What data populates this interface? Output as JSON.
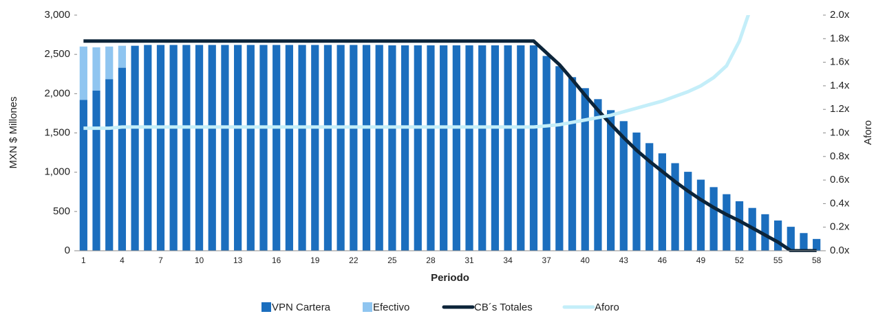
{
  "chart_data": {
    "type": "bar",
    "stacked": true,
    "x_label": "Periodo",
    "y_label": "MXN $ Millones",
    "y2_label": "Aforo",
    "categories": [
      1,
      null,
      null,
      4,
      null,
      null,
      7,
      null,
      null,
      10,
      null,
      null,
      13,
      null,
      null,
      16,
      null,
      null,
      19,
      null,
      null,
      22,
      null,
      null,
      25,
      null,
      null,
      28,
      null,
      null,
      31,
      null,
      null,
      34,
      null,
      null,
      37,
      null,
      null,
      40,
      null,
      null,
      43,
      null,
      null,
      46,
      null,
      null,
      49,
      null,
      null,
      52,
      null,
      null,
      55,
      null,
      null,
      58
    ],
    "ylim": [
      0,
      3000
    ],
    "yticks": [
      0,
      500,
      {
        "value": 1000,
        "label": "1,000"
      },
      {
        "value": 1500,
        "label": "1,500"
      },
      {
        "value": 2000,
        "label": "2,000"
      },
      {
        "value": 2500,
        "label": "2,500"
      },
      {
        "value": 3000,
        "label": "3,000"
      }
    ],
    "y2lim": [
      0,
      2
    ],
    "y2ticks": [
      {
        "value": 0,
        "label": "0.0x"
      },
      {
        "value": 0.2,
        "label": "0.2x"
      },
      {
        "value": 0.4,
        "label": "0.4x"
      },
      {
        "value": 0.6,
        "label": "0.6x"
      },
      {
        "value": 0.8,
        "label": "0.8x"
      },
      {
        "value": 1,
        "label": "1.0x"
      },
      {
        "value": 1.2,
        "label": "1.2x"
      },
      {
        "value": 1.4,
        "label": "1.4x"
      },
      {
        "value": 1.6,
        "label": "1.6x"
      },
      {
        "value": 1.8,
        "label": "1.8x"
      },
      {
        "value": 2,
        "label": "2.0x"
      }
    ],
    "legend": "bottom",
    "series": [
      {
        "name": "VPN Cartera",
        "type": "bar",
        "color": "#1b6ebe",
        "values": [
          1920,
          2040,
          2185,
          2330,
          2610,
          2620,
          2620,
          2620,
          2620,
          2620,
          2620,
          2620,
          2620,
          2620,
          2620,
          2620,
          2620,
          2620,
          2620,
          2620,
          2620,
          2620,
          2620,
          2620,
          2615,
          2615,
          2615,
          2615,
          2615,
          2615,
          2615,
          2615,
          2615,
          2615,
          2615,
          2615,
          2480,
          2350,
          2210,
          2070,
          1930,
          1790,
          1650,
          1505,
          1370,
          1240,
          1115,
          1005,
          905,
          810,
          720,
          630,
          545,
          465,
          385,
          305,
          225,
          150
        ]
      },
      {
        "name": "Efectivo",
        "type": "bar",
        "color": "#8fc5f0",
        "values": [
          680,
          550,
          415,
          280,
          0,
          0,
          0,
          0,
          0,
          0,
          0,
          0,
          0,
          0,
          0,
          0,
          0,
          0,
          0,
          0,
          0,
          0,
          0,
          0,
          0,
          0,
          0,
          0,
          0,
          0,
          0,
          0,
          0,
          0,
          0,
          0,
          0,
          0,
          0,
          0,
          0,
          0,
          0,
          0,
          0,
          0,
          0,
          0,
          0,
          0,
          0,
          0,
          0,
          0,
          0,
          0,
          0,
          0
        ]
      },
      {
        "name": "CB´s Totales",
        "type": "line",
        "color": "#0c2439",
        "width": 5,
        "values": [
          2670,
          2670,
          2670,
          2670,
          2670,
          2670,
          2670,
          2670,
          2670,
          2670,
          2670,
          2670,
          2670,
          2670,
          2670,
          2670,
          2670,
          2670,
          2670,
          2670,
          2670,
          2670,
          2670,
          2670,
          2670,
          2670,
          2670,
          2670,
          2670,
          2670,
          2670,
          2670,
          2670,
          2670,
          2670,
          2670,
          2520,
          2370,
          2180,
          1980,
          1790,
          1610,
          1440,
          1280,
          1140,
          1010,
          880,
          760,
          650,
          550,
          460,
          380,
          290,
          200,
          110,
          0,
          0,
          0
        ]
      },
      {
        "name": "Aforo",
        "type": "line",
        "axis": "y2",
        "color": "#c4eef9",
        "width": 5,
        "values": [
          1.04,
          1.04,
          1.04,
          1.05,
          1.05,
          1.05,
          1.05,
          1.05,
          1.05,
          1.05,
          1.05,
          1.05,
          1.05,
          1.05,
          1.05,
          1.05,
          1.05,
          1.05,
          1.05,
          1.05,
          1.05,
          1.05,
          1.05,
          1.05,
          1.05,
          1.05,
          1.05,
          1.05,
          1.05,
          1.05,
          1.05,
          1.05,
          1.05,
          1.05,
          1.05,
          1.05,
          1.06,
          1.07,
          1.09,
          1.11,
          1.13,
          1.15,
          1.18,
          1.21,
          1.24,
          1.27,
          1.31,
          1.35,
          1.4,
          1.47,
          1.57,
          1.78,
          2.1,
          null,
          null,
          null,
          null,
          null
        ]
      }
    ]
  }
}
